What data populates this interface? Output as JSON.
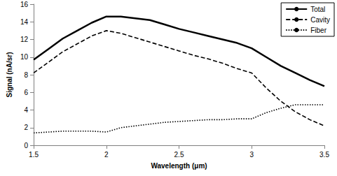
{
  "chart_data": {
    "type": "line",
    "x_label": "Wavelength (μm)",
    "y_label": "Signal (nA/sr)",
    "x": [
      1.5,
      1.6,
      1.7,
      1.8,
      1.9,
      2.0,
      2.1,
      2.2,
      2.3,
      2.4,
      2.5,
      2.6,
      2.7,
      2.8,
      2.9,
      3.0,
      3.1,
      3.2,
      3.3,
      3.4,
      3.5
    ],
    "series": [
      {
        "name": "Total",
        "color": "#000000",
        "line_style": "solid",
        "values": [
          9.7,
          10.9,
          12.1,
          13.0,
          13.9,
          14.6,
          14.6,
          14.4,
          14.2,
          13.7,
          13.2,
          12.8,
          12.4,
          12.0,
          11.6,
          11.0,
          10.0,
          9.0,
          8.2,
          7.4,
          6.7
        ]
      },
      {
        "name": "Cavity",
        "color": "#000000",
        "line_style": "dashed",
        "values": [
          8.2,
          9.4,
          10.6,
          11.5,
          12.4,
          13.0,
          12.7,
          12.2,
          11.7,
          11.2,
          10.7,
          10.2,
          9.8,
          9.3,
          8.7,
          8.2,
          6.5,
          5.0,
          3.8,
          2.9,
          2.2
        ]
      },
      {
        "name": "Fiber",
        "color": "#000000",
        "line_style": "dotted",
        "values": [
          1.4,
          1.5,
          1.6,
          1.6,
          1.6,
          1.5,
          2.0,
          2.2,
          2.4,
          2.6,
          2.7,
          2.8,
          2.9,
          2.9,
          3.0,
          3.0,
          3.7,
          4.2,
          4.6,
          4.6,
          4.6
        ]
      }
    ],
    "xlim": [
      1.5,
      3.5
    ],
    "xticks": [
      1.5,
      2,
      2.5,
      3,
      3.5
    ],
    "ylim": [
      0,
      16
    ],
    "yticks": [
      0,
      2,
      4,
      6,
      8,
      10,
      12,
      14,
      16
    ],
    "grid": false,
    "legend": "top-right"
  }
}
